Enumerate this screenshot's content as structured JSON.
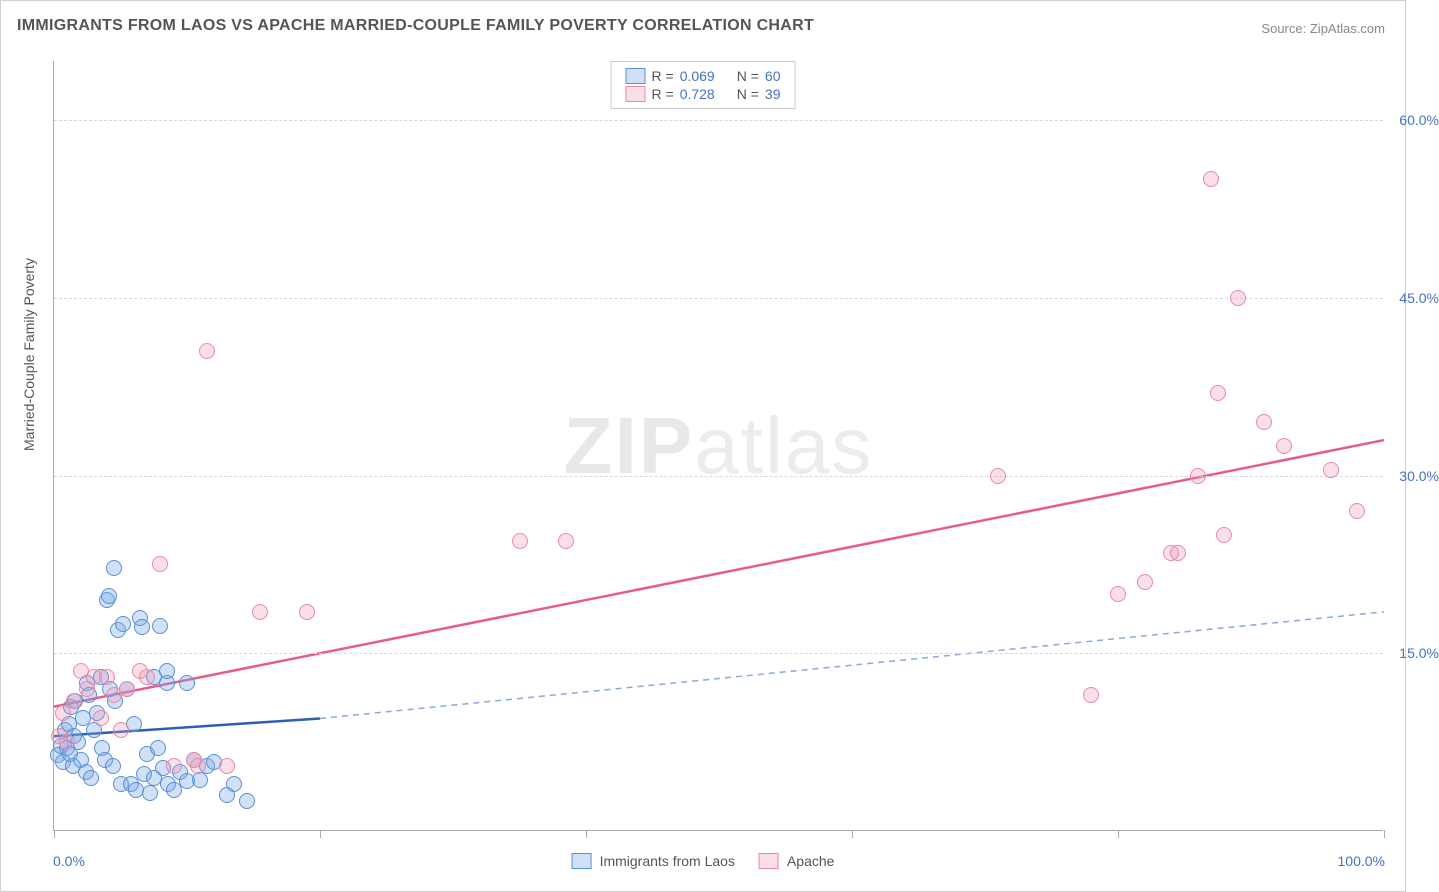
{
  "title": "IMMIGRANTS FROM LAOS VS APACHE MARRIED-COUPLE FAMILY POVERTY CORRELATION CHART",
  "source_label": "Source:",
  "source_value": "ZipAtlas.com",
  "y_axis_label": "Married-Couple Family Poverty",
  "x_axis_min_label": "0.0%",
  "x_axis_max_label": "100.0%",
  "watermark_a": "ZIP",
  "watermark_b": "atlas",
  "chart": {
    "type": "scatter",
    "xlim": [
      0,
      100
    ],
    "ylim": [
      0,
      65
    ],
    "y_ticks": [
      15.0,
      30.0,
      45.0,
      60.0
    ],
    "y_tick_labels": [
      "15.0%",
      "30.0%",
      "45.0%",
      "60.0%"
    ],
    "x_tick_positions": [
      0,
      20,
      40,
      60,
      80,
      100
    ],
    "background_color": "#ffffff",
    "grid_color": "#d8d8d8",
    "axis_color": "#aaaaaa",
    "label_color": "#4472c4",
    "title_color": "#555555",
    "marker_radius": 8,
    "series": [
      {
        "name": "Immigrants from Laos",
        "R": "0.069",
        "N": "60",
        "fill": "rgba(120,170,230,0.35)",
        "stroke": "#5a8fd6",
        "trend": {
          "x1": 0,
          "y1": 8.0,
          "x2": 20,
          "y2": 9.5,
          "extrap_x2": 100,
          "extrap_y2": 18.5,
          "solid_color": "#2e5fb3",
          "dash_color": "#8aa9d8",
          "stroke_width": 2.5
        },
        "points": [
          [
            0.3,
            6.4
          ],
          [
            0.5,
            7.2
          ],
          [
            0.7,
            5.8
          ],
          [
            0.8,
            8.5
          ],
          [
            1.0,
            7.0
          ],
          [
            1.1,
            9.0
          ],
          [
            1.2,
            6.5
          ],
          [
            1.3,
            10.5
          ],
          [
            1.4,
            5.5
          ],
          [
            1.5,
            8.0
          ],
          [
            1.6,
            11.0
          ],
          [
            1.8,
            7.5
          ],
          [
            2.0,
            6.0
          ],
          [
            2.2,
            9.5
          ],
          [
            2.4,
            5.0
          ],
          [
            2.5,
            12.5
          ],
          [
            2.6,
            11.5
          ],
          [
            2.8,
            4.5
          ],
          [
            3.0,
            8.5
          ],
          [
            3.2,
            10.0
          ],
          [
            3.5,
            13.0
          ],
          [
            3.6,
            7.0
          ],
          [
            3.8,
            6.0
          ],
          [
            4.0,
            19.5
          ],
          [
            4.1,
            19.8
          ],
          [
            4.2,
            12.0
          ],
          [
            4.4,
            5.5
          ],
          [
            4.5,
            22.2
          ],
          [
            4.6,
            11.0
          ],
          [
            4.8,
            17.0
          ],
          [
            5.0,
            4.0
          ],
          [
            5.2,
            17.5
          ],
          [
            5.5,
            12.0
          ],
          [
            5.8,
            4.0
          ],
          [
            6.0,
            9.0
          ],
          [
            6.2,
            3.5
          ],
          [
            6.5,
            18.0
          ],
          [
            6.6,
            17.2
          ],
          [
            6.8,
            4.8
          ],
          [
            7.0,
            6.5
          ],
          [
            7.2,
            3.2
          ],
          [
            7.5,
            4.5
          ],
          [
            7.5,
            13.0
          ],
          [
            7.8,
            7.0
          ],
          [
            8.0,
            17.3
          ],
          [
            8.2,
            5.3
          ],
          [
            8.5,
            12.5
          ],
          [
            8.6,
            4.0
          ],
          [
            9.0,
            3.5
          ],
          [
            9.5,
            5.0
          ],
          [
            10.0,
            4.2
          ],
          [
            10.5,
            6.0
          ],
          [
            11.0,
            4.3
          ],
          [
            11.5,
            5.5
          ],
          [
            12.0,
            5.8
          ],
          [
            13.0,
            3.0
          ],
          [
            13.5,
            4.0
          ],
          [
            14.5,
            2.5
          ],
          [
            10.0,
            12.5
          ],
          [
            8.5,
            13.5
          ]
        ]
      },
      {
        "name": "Apache",
        "R": "0.728",
        "N": "39",
        "fill": "rgba(240,150,180,0.3)",
        "stroke": "#e68aa8",
        "trend": {
          "x1": 0,
          "y1": 10.5,
          "x2": 100,
          "y2": 33.0,
          "solid_color": "#e75c86",
          "stroke_width": 2.5
        },
        "points": [
          [
            0.4,
            8.0
          ],
          [
            0.7,
            10.0
          ],
          [
            1.0,
            7.5
          ],
          [
            1.5,
            11.0
          ],
          [
            2.0,
            13.5
          ],
          [
            2.5,
            12.0
          ],
          [
            3.0,
            13.0
          ],
          [
            3.5,
            9.5
          ],
          [
            4.0,
            13.0
          ],
          [
            4.5,
            11.5
          ],
          [
            5.0,
            8.5
          ],
          [
            5.5,
            12.0
          ],
          [
            6.5,
            13.5
          ],
          [
            7.0,
            13.0
          ],
          [
            8.0,
            22.5
          ],
          [
            9.0,
            5.5
          ],
          [
            10.5,
            6.0
          ],
          [
            10.8,
            5.5
          ],
          [
            11.5,
            40.5
          ],
          [
            13.0,
            5.5
          ],
          [
            15.5,
            18.5
          ],
          [
            19.0,
            18.5
          ],
          [
            35.0,
            24.5
          ],
          [
            38.5,
            24.5
          ],
          [
            71.0,
            30.0
          ],
          [
            78.0,
            11.5
          ],
          [
            80.0,
            20.0
          ],
          [
            82.0,
            21.0
          ],
          [
            84.0,
            23.5
          ],
          [
            86.0,
            30.0
          ],
          [
            87.0,
            55.0
          ],
          [
            87.5,
            37.0
          ],
          [
            88.0,
            25.0
          ],
          [
            89.0,
            45.0
          ],
          [
            91.0,
            34.5
          ],
          [
            92.5,
            32.5
          ],
          [
            96.0,
            30.5
          ],
          [
            98.0,
            27.0
          ],
          [
            84.5,
            23.5
          ]
        ]
      }
    ]
  },
  "legend_top": {
    "R_label": "R =",
    "N_label": "N ="
  },
  "legend_bottom": {
    "series1_label": "Immigrants from Laos",
    "series2_label": "Apache"
  }
}
